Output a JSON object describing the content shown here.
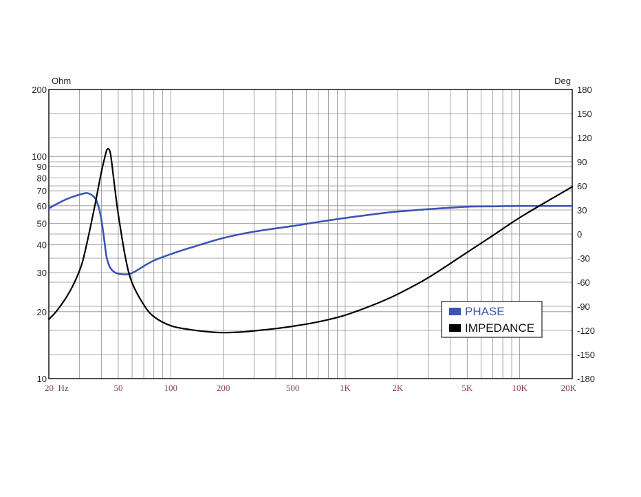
{
  "chart_data": {
    "type": "line",
    "x_scale": "log",
    "y_left_scale": "log",
    "x_range": [
      20,
      20000
    ],
    "y_left_range": [
      10,
      200
    ],
    "y_right_range": [
      -180,
      180
    ],
    "y_left_unit": "Ohm",
    "y_right_unit": "Deg",
    "grid": true,
    "x_ticks": [
      {
        "value": 20,
        "label": "20  Hz"
      },
      {
        "value": 50,
        "label": "50"
      },
      {
        "value": 100,
        "label": "100"
      },
      {
        "value": 200,
        "label": "200"
      },
      {
        "value": 500,
        "label": "500"
      },
      {
        "value": 1000,
        "label": "1K"
      },
      {
        "value": 2000,
        "label": "2K"
      },
      {
        "value": 5000,
        "label": "5K"
      },
      {
        "value": 10000,
        "label": "10K"
      },
      {
        "value": 20000,
        "label": "20K"
      }
    ],
    "y_left_ticks": [
      {
        "value": 10,
        "label": "10"
      },
      {
        "value": 20,
        "label": "20"
      },
      {
        "value": 30,
        "label": "30"
      },
      {
        "value": 40,
        "label": "40"
      },
      {
        "value": 50,
        "label": "50"
      },
      {
        "value": 60,
        "label": "60"
      },
      {
        "value": 70,
        "label": "70"
      },
      {
        "value": 80,
        "label": "80"
      },
      {
        "value": 90,
        "label": "90"
      },
      {
        "value": 100,
        "label": "100"
      },
      {
        "value": 200,
        "label": "200"
      }
    ],
    "y_right_ticks": [
      {
        "value": 180,
        "label": "180"
      },
      {
        "value": 150,
        "label": "150"
      },
      {
        "value": 120,
        "label": "120"
      },
      {
        "value": 90,
        "label": "90"
      },
      {
        "value": 60,
        "label": "60"
      },
      {
        "value": 30,
        "label": "30"
      },
      {
        "value": 0,
        "label": "0"
      },
      {
        "value": -30,
        "label": "-30"
      },
      {
        "value": -60,
        "label": "-60"
      },
      {
        "value": -90,
        "label": "-90"
      },
      {
        "value": -120,
        "label": "-120"
      },
      {
        "value": -150,
        "label": "-150"
      },
      {
        "value": -180,
        "label": "-180"
      }
    ],
    "legend_position": "lower-right",
    "series": [
      {
        "name": "PHASE",
        "axis": "right",
        "color": "#3b55b4",
        "x": [
          20,
          22,
          25,
          28,
          31,
          33,
          35,
          37,
          38,
          39,
          40,
          41,
          42,
          43,
          45,
          48,
          52,
          57,
          62,
          70,
          80,
          100,
          130,
          200,
          300,
          500,
          700,
          1000,
          1500,
          2000,
          3000,
          5000,
          7000,
          10000,
          15000,
          20000
        ],
        "y": [
          32,
          37,
          43,
          47,
          50,
          51,
          49,
          44,
          38,
          30,
          18,
          2,
          -15,
          -30,
          -42,
          -48,
          -50,
          -50,
          -47,
          -40,
          -33,
          -25,
          -17,
          -5,
          3,
          10,
          15,
          20,
          25,
          28,
          31,
          34,
          34.5,
          35,
          35,
          35
        ]
      },
      {
        "name": "IMPEDANCE",
        "axis": "left",
        "color": "#000000",
        "x": [
          20,
          22,
          25,
          28,
          31,
          34,
          37,
          40,
          42,
          43,
          44,
          45,
          46,
          48,
          50,
          55,
          60,
          70,
          80,
          100,
          130,
          170,
          200,
          250,
          300,
          400,
          500,
          700,
          1000,
          1500,
          2000,
          3000,
          5000,
          7000,
          10000,
          15000,
          20000
        ],
        "y": [
          18.5,
          20,
          23,
          27,
          33,
          45,
          62,
          85,
          100,
          107,
          108,
          104,
          92,
          70,
          55,
          35,
          27,
          21.5,
          19,
          17.3,
          16.6,
          16.2,
          16.1,
          16.2,
          16.4,
          16.8,
          17.2,
          18,
          19.3,
          21.7,
          24,
          28.5,
          37,
          44,
          53,
          64,
          73
        ]
      }
    ]
  }
}
